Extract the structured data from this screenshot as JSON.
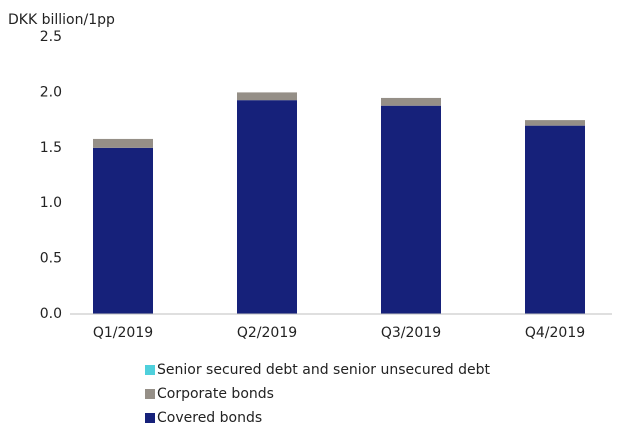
{
  "chart_data": {
    "type": "stacked_bar",
    "y_axis_label": "DKK billion/1pp",
    "categories": [
      "Q1/2019",
      "Q2/2019",
      "Q3/2019",
      "Q4/2019"
    ],
    "series": [
      {
        "name": "Covered bonds",
        "color": "#16217a",
        "values": [
          1.5,
          1.93,
          1.88,
          1.7
        ]
      },
      {
        "name": "Corporate bonds",
        "color": "#958f87",
        "values": [
          0.08,
          0.07,
          0.07,
          0.05
        ]
      },
      {
        "name": "Senior secured debt and senior unsecured debt",
        "color": "#4fd0dc",
        "values": [
          0,
          0,
          0,
          0
        ]
      }
    ],
    "ylim": [
      0,
      2.5
    ],
    "yticks": [
      {
        "value": 0,
        "label": "0.0"
      },
      0.5,
      {
        "value": 1,
        "label": "1.0"
      },
      1.5,
      {
        "value": 2,
        "label": "2.0"
      },
      2.5
    ],
    "grid": false
  }
}
